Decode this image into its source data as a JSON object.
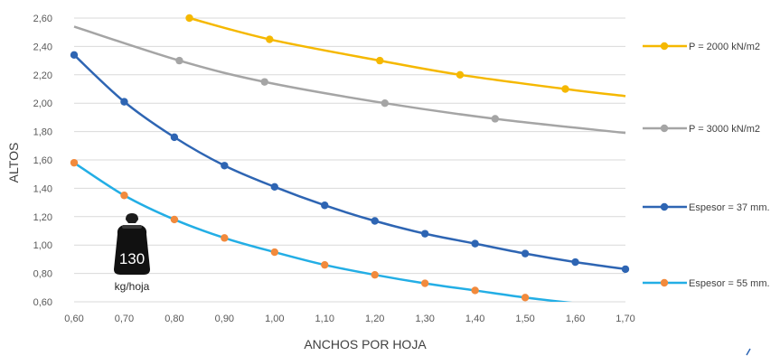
{
  "chart_data": {
    "type": "line",
    "xlabel": "ANCHOS POR HOJA",
    "ylabel": "ALTOS",
    "xlim": [
      0.6,
      1.7
    ],
    "ylim": [
      0.6,
      2.6
    ],
    "x_ticks": [
      "0,60",
      "0,70",
      "0,80",
      "0,90",
      "1,00",
      "1,10",
      "1,20",
      "1,30",
      "1,40",
      "1,50",
      "1,60",
      "1,70"
    ],
    "y_ticks": [
      "0,60",
      "0,80",
      "1,00",
      "1,20",
      "1,40",
      "1,60",
      "1,80",
      "2,00",
      "2,20",
      "2,40",
      "2,60"
    ],
    "grid": "horizontal",
    "legend_position": "right",
    "series": [
      {
        "name": "P = 2000 kN/m2",
        "color": "#F5B800",
        "points": [
          [
            0.83,
            2.6
          ],
          [
            0.99,
            2.45
          ],
          [
            1.21,
            2.3
          ],
          [
            1.37,
            2.2
          ],
          [
            1.58,
            2.1
          ],
          [
            1.7,
            2.05
          ]
        ],
        "markers": [
          true,
          true,
          true,
          true,
          true,
          false
        ]
      },
      {
        "name": "P = 3000 kN/m2",
        "color": "#A5A5A5",
        "points": [
          [
            0.6,
            2.54
          ],
          [
            0.81,
            2.3
          ],
          [
            0.98,
            2.15
          ],
          [
            1.22,
            2.0
          ],
          [
            1.44,
            1.89
          ],
          [
            1.7,
            1.79
          ]
        ],
        "markers": [
          false,
          true,
          true,
          true,
          true,
          false
        ]
      },
      {
        "name": "Espesor = 37 mm.",
        "color": "#2E65B3",
        "points": [
          [
            0.6,
            2.34
          ],
          [
            0.7,
            2.01
          ],
          [
            0.8,
            1.76
          ],
          [
            0.9,
            1.56
          ],
          [
            1.0,
            1.41
          ],
          [
            1.1,
            1.28
          ],
          [
            1.2,
            1.17
          ],
          [
            1.3,
            1.08
          ],
          [
            1.4,
            1.01
          ],
          [
            1.5,
            0.94
          ],
          [
            1.6,
            0.88
          ],
          [
            1.7,
            0.83
          ]
        ],
        "markers": [
          true,
          true,
          true,
          true,
          true,
          true,
          true,
          true,
          true,
          true,
          true,
          true
        ]
      },
      {
        "name": "Espesor = 55 mm.",
        "color": "#23AEE5",
        "marker_color": "#F28A3C",
        "points": [
          [
            0.6,
            1.58
          ],
          [
            0.7,
            1.35
          ],
          [
            0.8,
            1.18
          ],
          [
            0.9,
            1.05
          ],
          [
            1.0,
            0.95
          ],
          [
            1.1,
            0.86
          ],
          [
            1.2,
            0.79
          ],
          [
            1.3,
            0.73
          ],
          [
            1.4,
            0.68
          ],
          [
            1.5,
            0.63
          ],
          [
            1.6,
            0.59
          ],
          [
            1.65,
            0.58
          ]
        ],
        "markers": [
          true,
          true,
          true,
          true,
          true,
          true,
          true,
          true,
          true,
          true,
          false,
          false
        ]
      }
    ],
    "annotation": {
      "value": "130",
      "unit": "kg/hoja",
      "icon": "weight-icon"
    }
  }
}
